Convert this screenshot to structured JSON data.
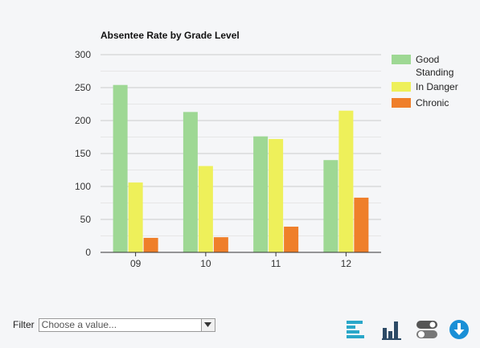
{
  "chart_data": {
    "type": "bar",
    "title": "Absentee Rate by Grade Level",
    "xlabel": "",
    "ylabel": "",
    "categories": [
      "09",
      "10",
      "11",
      "12"
    ],
    "series": [
      {
        "name": "Good Standing",
        "color": "#9ed894",
        "values": [
          254,
          213,
          176,
          140
        ]
      },
      {
        "name": "In Danger",
        "color": "#eef05a",
        "values": [
          106,
          131,
          172,
          215
        ]
      },
      {
        "name": "Chronic",
        "color": "#ef7f2a",
        "values": [
          22,
          23,
          39,
          83
        ]
      }
    ],
    "ylim": [
      0,
      300
    ],
    "yticks": [
      "0",
      "50",
      "100",
      "150",
      "200",
      "250",
      "300"
    ],
    "grid": true,
    "legend_position": "right"
  },
  "filter": {
    "label": "Filter",
    "placeholder": "Choose a value..."
  },
  "toolbar": {
    "icons": [
      "horizontal-bar-chart-icon",
      "vertical-bar-chart-icon",
      "toggle-switch-icon",
      "download-icon"
    ],
    "accent_color": "#1aa3d6",
    "dark_color": "#2c4a66"
  }
}
